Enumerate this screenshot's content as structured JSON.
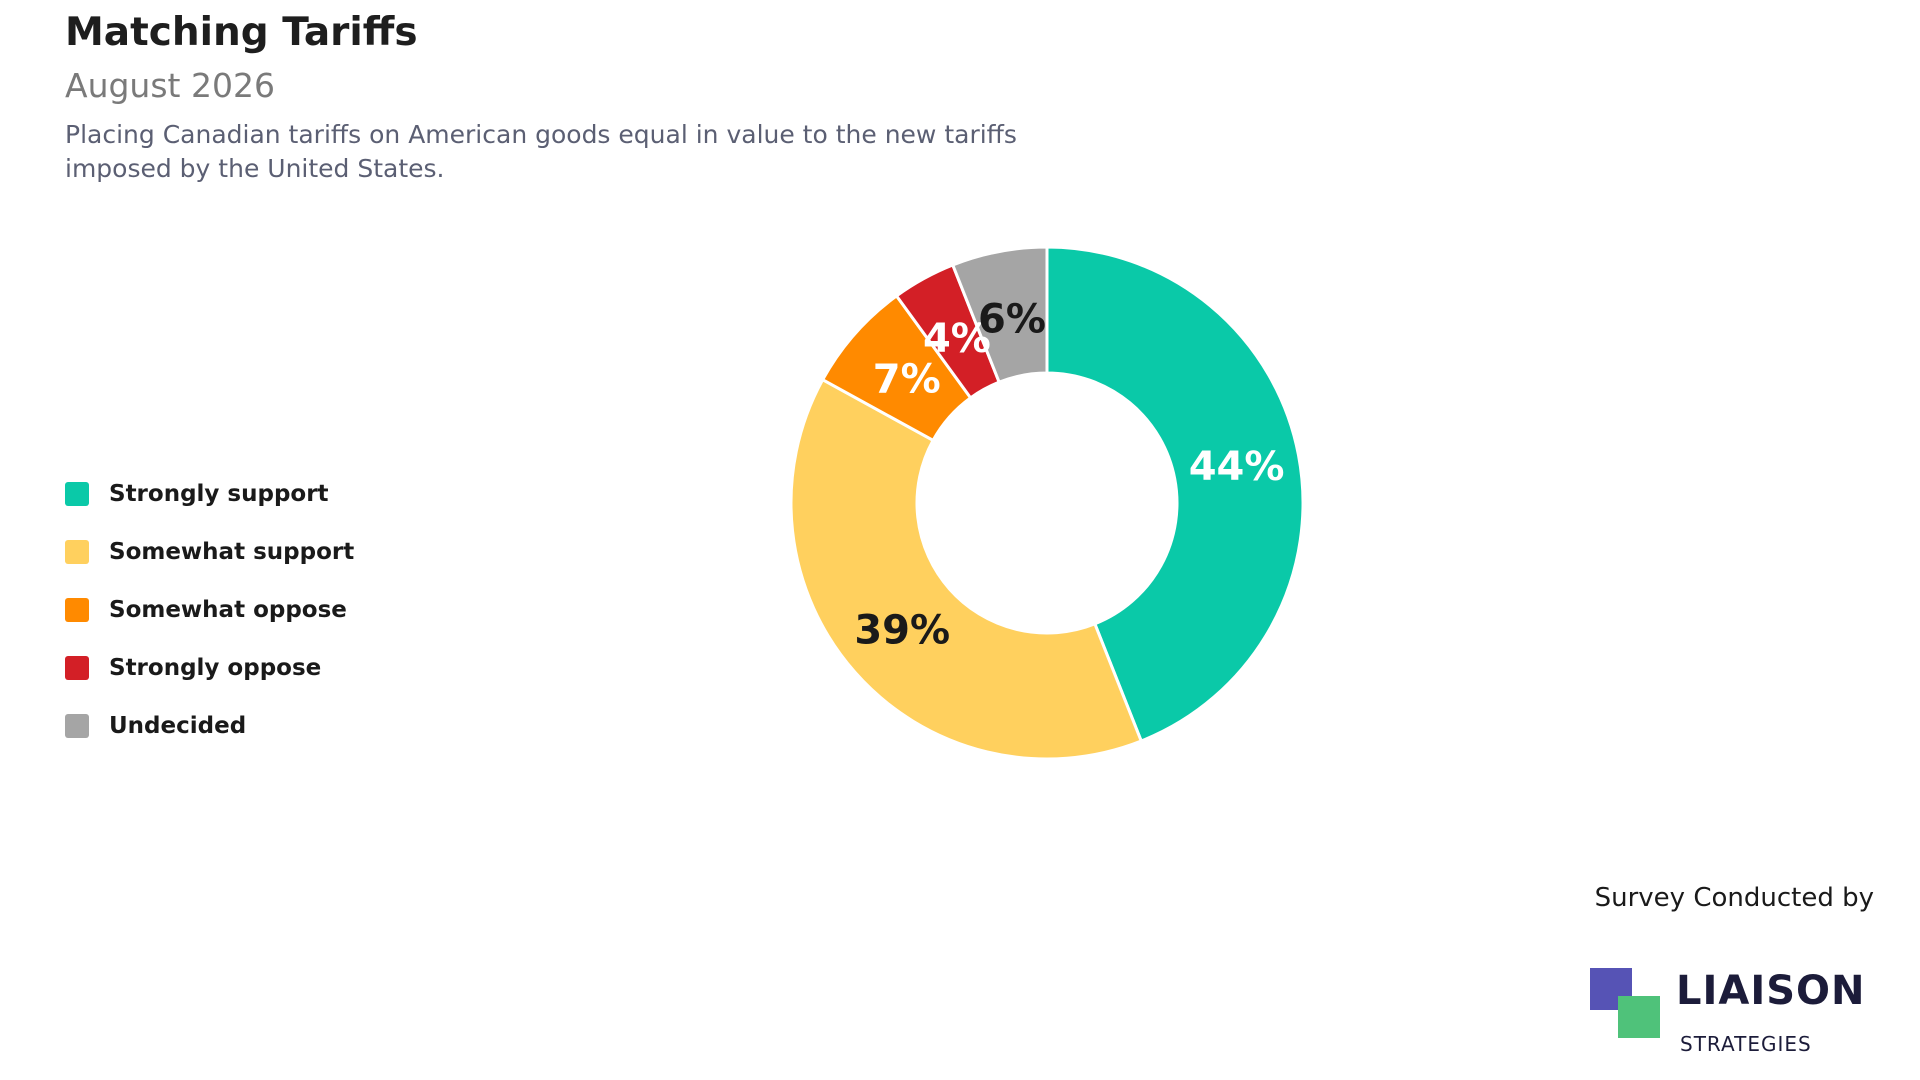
{
  "header": {
    "title": "Matching Tariffs",
    "subtitle": "August 2026",
    "description": "Placing Canadian tariffs on American goods equal in value to the new tariffs imposed by the United States."
  },
  "chart_data": {
    "type": "pie",
    "donut": true,
    "categories": [
      "Strongly support",
      "Somewhat support",
      "Somewhat oppose",
      "Strongly oppose",
      "Undecided"
    ],
    "values": [
      44,
      39,
      7,
      4,
      6
    ],
    "labels": [
      "44%",
      "39%",
      "7%",
      "4%",
      "6%"
    ],
    "colors": [
      "#0ac9a8",
      "#ffd05e",
      "#ff8a00",
      "#d31f26",
      "#a5a5a5"
    ],
    "label_colors": [
      "#ffffff",
      "#1a1a1a",
      "#ffffff",
      "#ffffff",
      "#1a1a1a"
    ],
    "legend_position": "left"
  },
  "legend": {
    "items": [
      {
        "label": "Strongly support",
        "color": "#0ac9a8"
      },
      {
        "label": "Somewhat support",
        "color": "#ffd05e"
      },
      {
        "label": "Somewhat oppose",
        "color": "#ff8a00"
      },
      {
        "label": "Strongly oppose",
        "color": "#d31f26"
      },
      {
        "label": "Undecided",
        "color": "#a5a5a5"
      }
    ]
  },
  "footer": {
    "credit": "Survey Conducted by",
    "logo_name": "LIAISON",
    "logo_sub": "STRATEGIES",
    "logo_colors": [
      "#5653b5",
      "#4fc27a"
    ]
  }
}
